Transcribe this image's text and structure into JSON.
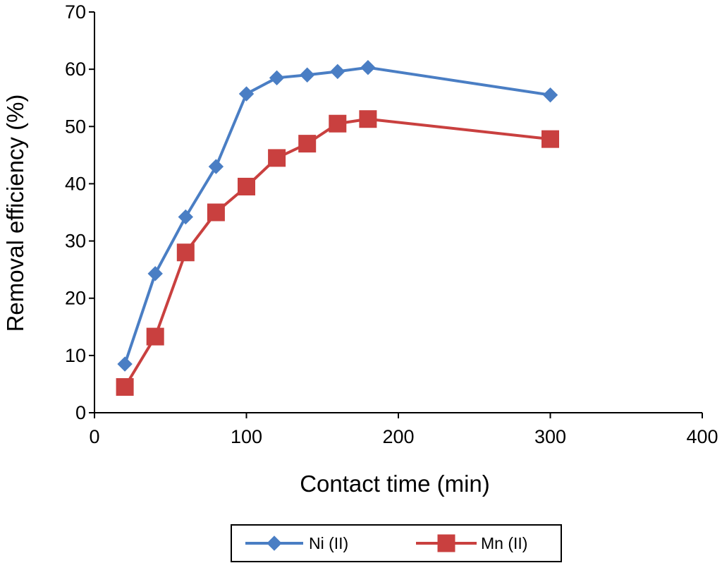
{
  "chart_data": {
    "type": "line",
    "title": "",
    "xlabel": "Contact time (min)",
    "ylabel": "Removal efficiency (%)",
    "xlim": [
      0,
      400
    ],
    "ylim": [
      0,
      70
    ],
    "xticks": [
      0,
      100,
      200,
      300,
      400
    ],
    "yticks": [
      0,
      10,
      20,
      30,
      40,
      50,
      60,
      70
    ],
    "grid": false,
    "legend_position": "bottom",
    "series": [
      {
        "name": "Ni (II)",
        "color": "#4a7ec4",
        "marker": "diamond",
        "x": [
          20,
          40,
          60,
          80,
          100,
          120,
          140,
          160,
          180,
          300
        ],
        "y": [
          8.5,
          24.3,
          34.2,
          43,
          55.7,
          58.5,
          59,
          59.6,
          60.3,
          55.5
        ]
      },
      {
        "name": "Mn (II)",
        "color": "#c9403f",
        "marker": "square",
        "x": [
          20,
          40,
          60,
          80,
          100,
          120,
          140,
          160,
          180,
          300
        ],
        "y": [
          4.5,
          13.3,
          28,
          35,
          39.5,
          44.5,
          47,
          50.5,
          51.3,
          47.8
        ]
      }
    ]
  }
}
